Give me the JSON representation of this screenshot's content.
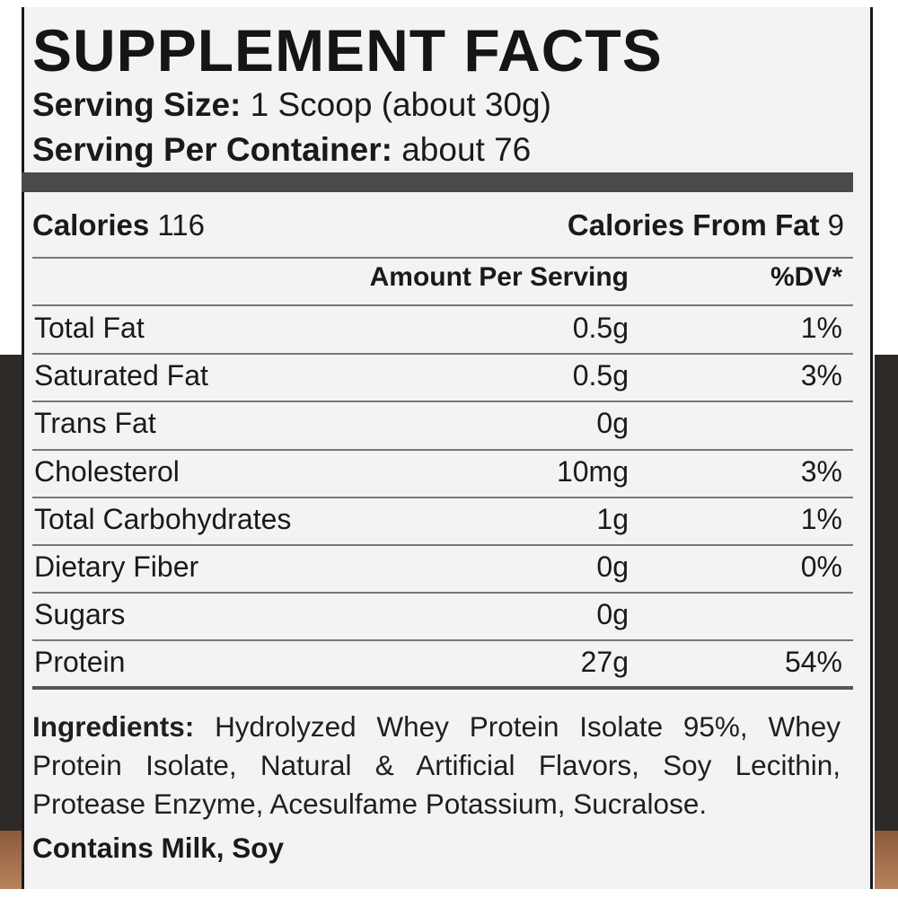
{
  "title": "SUPPLEMENT FACTS",
  "serving_size": {
    "label": "Serving Size:",
    "value": "1 Scoop (about 30g)"
  },
  "servings_per_container": {
    "label": "Serving Per Container:",
    "value": "about 76"
  },
  "calories": {
    "label": "Calories",
    "value": "116"
  },
  "calories_from_fat": {
    "label": "Calories From Fat",
    "value": "9"
  },
  "columns": {
    "amount": "Amount Per Serving",
    "dv": "%DV*"
  },
  "nutrients": [
    {
      "name": "Total Fat",
      "amount": "0.5g",
      "dv": "1%"
    },
    {
      "name": "Saturated Fat",
      "amount": "0.5g",
      "dv": "3%"
    },
    {
      "name": "Trans Fat",
      "amount": "0g",
      "dv": ""
    },
    {
      "name": "Cholesterol",
      "amount": "10mg",
      "dv": "3%"
    },
    {
      "name": "Total Carbohydrates",
      "amount": "1g",
      "dv": "1%"
    },
    {
      "name": "Dietary Fiber",
      "amount": "0g",
      "dv": "0%"
    },
    {
      "name": "Sugars",
      "amount": "0g",
      "dv": ""
    },
    {
      "name": "Protein",
      "amount": "27g",
      "dv": "54%"
    }
  ],
  "ingredients": {
    "label": "Ingredients:",
    "text": "Hydrolyzed Whey Protein Isolate 95%, Whey Protein Isolate, Natural & Artificial Flavors, Soy Lecithin, Protease Enzyme, Acesulfame Potassium, Sucralose."
  },
  "allergens": "Contains Milk, Soy"
}
